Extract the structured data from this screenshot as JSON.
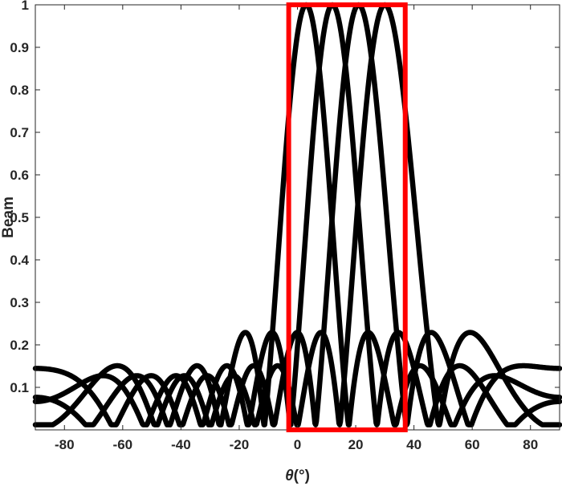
{
  "chart_data": {
    "type": "line",
    "xlabel_symbol": "θ",
    "xlabel_unit": "(°)",
    "ylabel": "Beam",
    "xlim": [
      -90,
      90
    ],
    "ylim": [
      0,
      1
    ],
    "xticks": [
      -80,
      -60,
      -40,
      -20,
      0,
      20,
      40,
      60,
      80
    ],
    "yticks": [
      0.1,
      0.2,
      0.3,
      0.4,
      0.5,
      0.6,
      0.7,
      0.8,
      0.9,
      1
    ],
    "ytick_labels": [
      "0.1",
      "0.2",
      "0.3",
      "0.4",
      "0.5",
      "0.6",
      "0.7",
      "0.8",
      "0.9",
      "1"
    ],
    "grid": false,
    "series_color": "#000000",
    "series": [
      {
        "peak_deg": 3
      },
      {
        "peak_deg": 12
      },
      {
        "peak_deg": 21
      },
      {
        "peak_deg": 30
      }
    ],
    "highlight_box": {
      "x_range": [
        -3,
        37
      ],
      "y_range": [
        0,
        1
      ],
      "color": "#ff0000"
    }
  }
}
